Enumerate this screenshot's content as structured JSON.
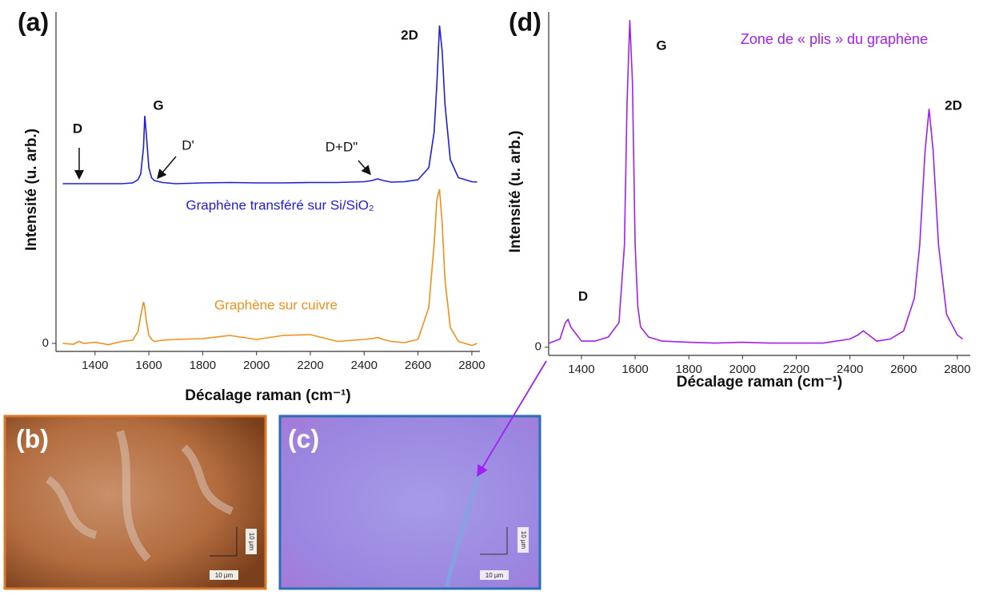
{
  "chart_data": [
    {
      "type": "line",
      "panel": "(a)",
      "x_label": "Décalage raman (cm⁻¹)",
      "y_label": "Intensité (u. arb.)",
      "x": [
        1280,
        1320,
        1340,
        1360,
        1400,
        1450,
        1500,
        1540,
        1560,
        1570,
        1580,
        1585,
        1590,
        1600,
        1610,
        1620,
        1650,
        1700,
        1800,
        1900,
        2000,
        2100,
        2200,
        2300,
        2400,
        2430,
        2450,
        2470,
        2500,
        2550,
        2600,
        2640,
        2660,
        2670,
        2680,
        2690,
        2700,
        2720,
        2750,
        2800,
        2820
      ],
      "series": [
        {
          "name": "Graphène transféré sur Si/SiO₂",
          "color": "#1f1fd6",
          "values": [
            4.0,
            4.0,
            4.0,
            4.0,
            4.0,
            4.0,
            4.0,
            4.02,
            4.1,
            4.25,
            4.9,
            5.7,
            5.3,
            4.4,
            4.15,
            4.08,
            4.03,
            4.0,
            4.02,
            4.03,
            4.02,
            4.02,
            4.03,
            4.03,
            4.05,
            4.08,
            4.12,
            4.08,
            4.04,
            4.05,
            4.1,
            4.4,
            5.3,
            6.5,
            7.96,
            7.3,
            6.0,
            4.6,
            4.15,
            4.05,
            4.04
          ]
        },
        {
          "name": "Graphène sur cuivre",
          "color": "#f0901a",
          "values": [
            0.0,
            -0.02,
            0.05,
            0.0,
            0.03,
            -0.03,
            0.05,
            0.08,
            0.3,
            0.7,
            1.04,
            0.9,
            0.6,
            0.2,
            0.1,
            0.05,
            0.08,
            0.1,
            0.12,
            0.2,
            0.1,
            0.2,
            0.22,
            0.05,
            0.1,
            0.12,
            0.15,
            0.1,
            0.05,
            0.02,
            0.1,
            0.9,
            2.5,
            3.6,
            3.86,
            3.0,
            1.6,
            0.4,
            0.05,
            -0.05,
            0.0
          ]
        }
      ],
      "annotations": [
        "D",
        "G",
        "D'",
        "D+D\"",
        "2D"
      ],
      "xlim": [
        1255,
        2830
      ],
      "ylim": [
        -0.2,
        8.3
      ],
      "xticks": [
        1400,
        1600,
        1800,
        2000,
        2200,
        2400,
        2600,
        2800
      ],
      "yticks": [
        0
      ]
    },
    {
      "type": "line",
      "panel": "(d)",
      "x_label": "Décalage raman (cm⁻¹)",
      "y_label": "Intensité (u. arb.)",
      "x": [
        1280,
        1320,
        1340,
        1350,
        1360,
        1400,
        1450,
        1500,
        1540,
        1560,
        1570,
        1580,
        1590,
        1600,
        1610,
        1620,
        1650,
        1700,
        1800,
        1900,
        2000,
        2100,
        2200,
        2300,
        2400,
        2430,
        2450,
        2470,
        2500,
        2550,
        2600,
        2640,
        2660,
        2680,
        2695,
        2710,
        2730,
        2760,
        2800,
        2820
      ],
      "series": [
        {
          "name": "Zone de « plis » du graphène",
          "color": "#a020f0",
          "values": [
            0.1,
            0.2,
            0.6,
            0.68,
            0.5,
            0.15,
            0.15,
            0.25,
            0.6,
            2.5,
            6.0,
            8.0,
            6.5,
            2.5,
            1.0,
            0.5,
            0.25,
            0.15,
            0.12,
            0.1,
            0.12,
            0.1,
            0.1,
            0.1,
            0.2,
            0.3,
            0.4,
            0.3,
            0.15,
            0.2,
            0.4,
            1.2,
            2.5,
            4.8,
            5.83,
            4.8,
            2.5,
            0.8,
            0.3,
            0.2
          ]
        }
      ],
      "annotations": [
        "G",
        "2D",
        "D"
      ],
      "xlim": [
        1278,
        2848
      ],
      "ylim": [
        -0.2,
        8.2
      ],
      "xticks": [
        1400,
        1600,
        1800,
        2000,
        2200,
        2400,
        2600,
        2800
      ],
      "yticks": [
        0
      ]
    }
  ],
  "images": [
    {
      "label": "(b)",
      "scale_x": "10 µm",
      "scale_y": "10 µm"
    },
    {
      "label": "(c)",
      "scale_x": "10 µm",
      "scale_y": "10 µm"
    }
  ]
}
